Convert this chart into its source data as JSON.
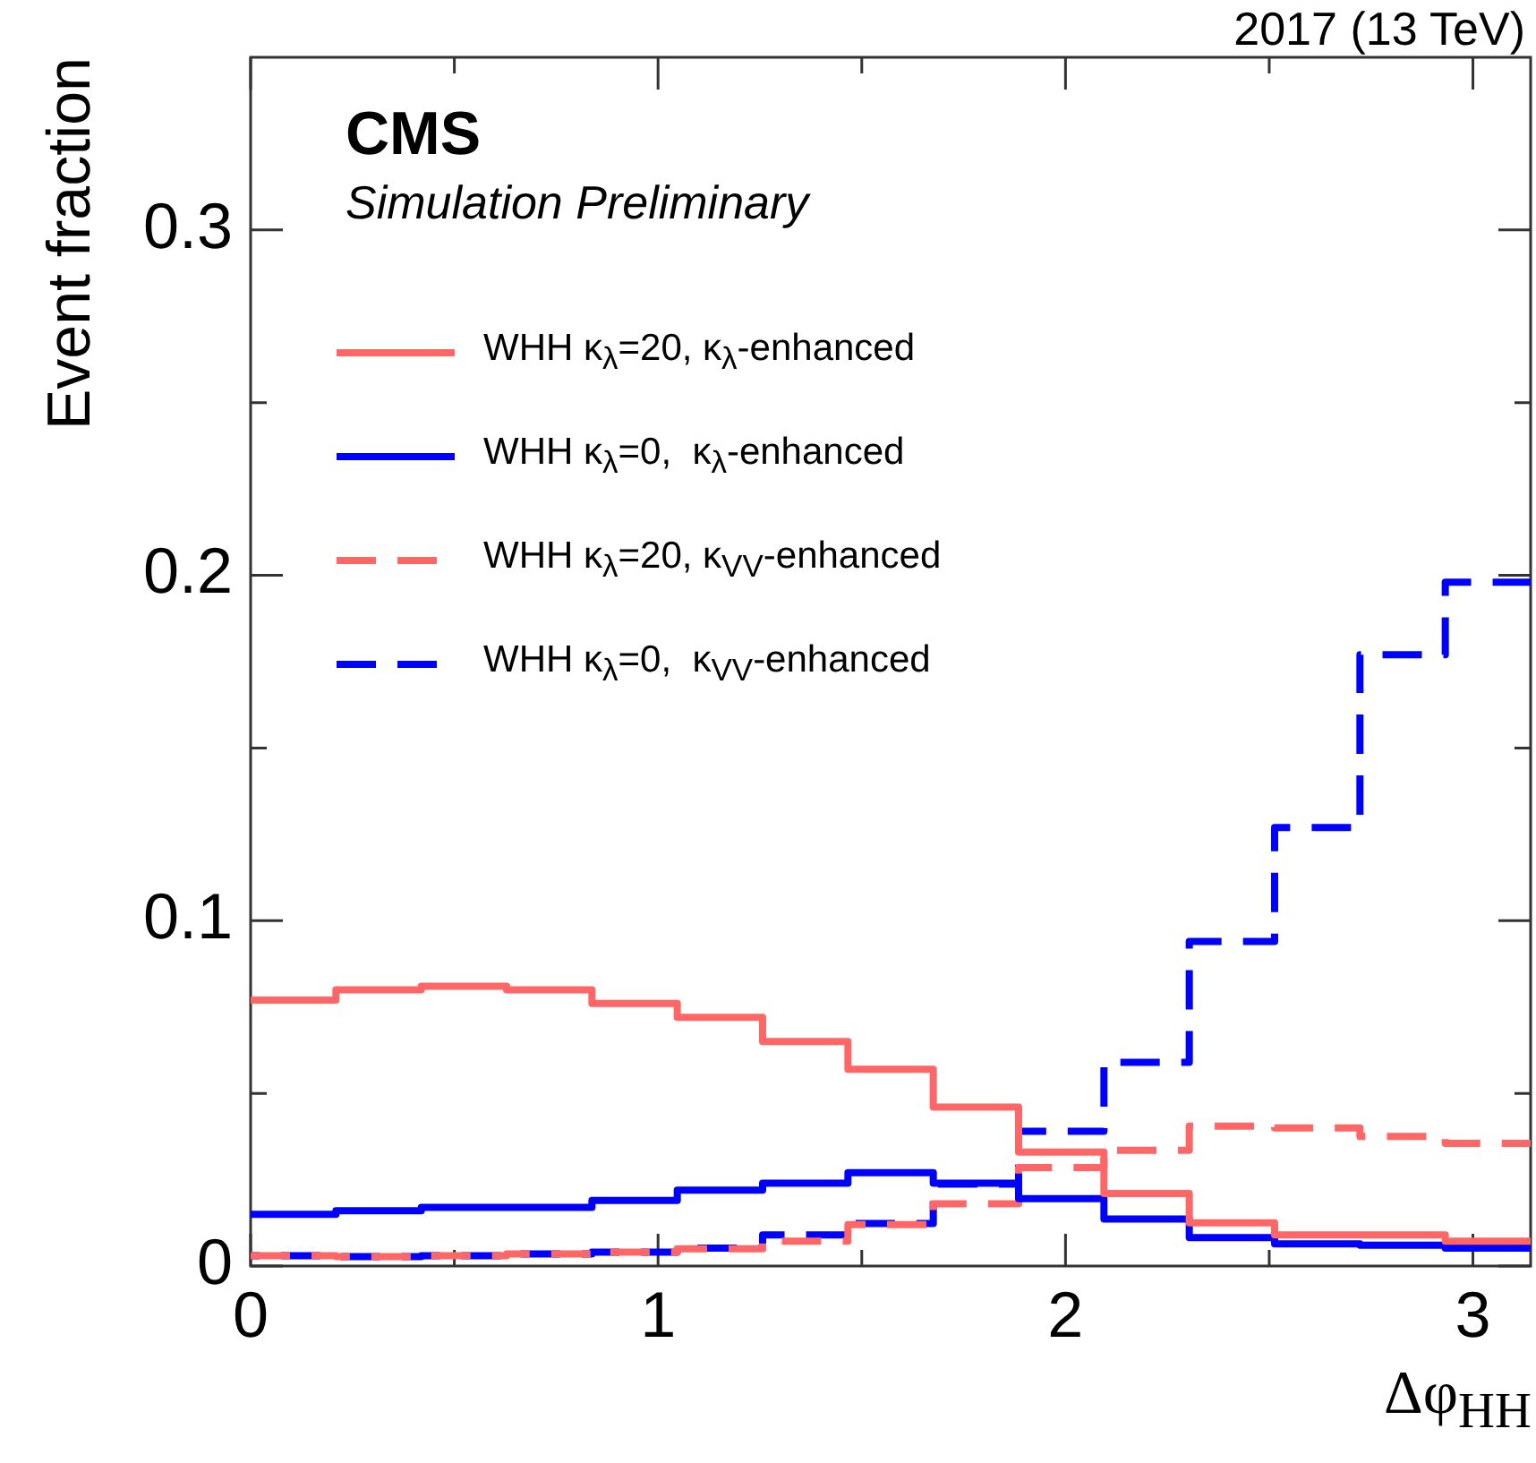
{
  "chart_data": {
    "type": "histogram",
    "xlabel": "Δφ$_{HH}$",
    "ylabel": "Event fraction",
    "annotations": [
      "CMS",
      "Simulation Preliminary",
      "2017 (13 TeV)"
    ],
    "bins": [
      0,
      0.2094,
      0.4189,
      0.6283,
      0.8378,
      1.0472,
      1.2566,
      1.4661,
      1.6755,
      1.885,
      2.0944,
      2.3038,
      2.5133,
      2.7227,
      2.9322,
      3.1416
    ],
    "xlim": [
      0,
      3.1416
    ],
    "xticks": [
      0,
      {
        "value": 0.5,
        "label": null
      },
      1,
      {
        "value": 1.5,
        "label": null
      },
      2,
      {
        "value": 2.5,
        "label": null
      },
      3
    ],
    "ylim": [
      0,
      0.35
    ],
    "yticks": [
      0,
      {
        "value": 0.05,
        "label": null
      },
      0.1,
      {
        "value": 0.15,
        "label": null
      },
      0.2,
      {
        "value": 0.25,
        "label": null
      },
      0.3
    ],
    "legend": "top left",
    "series": [
      {
        "name": "WHH κ$_{λ}$=20, κ$_{λ}$-enhanced",
        "color": "#ff6666",
        "line_style": "solid",
        "values": [
          0.077,
          0.08,
          0.081,
          0.08,
          0.076,
          0.072,
          0.065,
          0.057,
          0.046,
          0.033,
          0.021,
          0.0125,
          0.009,
          0.009,
          0.0072
        ]
      },
      {
        "name": "WHH κ$_{λ}$=0,  κ$_{λ}$-enhanced",
        "color": "#0000ff",
        "line_style": "solid",
        "values": [
          0.015,
          0.016,
          0.017,
          0.017,
          0.019,
          0.022,
          0.024,
          0.027,
          0.024,
          0.0195,
          0.0136,
          0.0082,
          0.0064,
          0.006,
          0.0052
        ]
      },
      {
        "name": "WHH κ$_{λ}$=20, κ$_{VV}$-enhanced",
        "color": "#ff6666",
        "line_style": "dashed",
        "values": [
          0.003,
          0.0027,
          0.003,
          0.0035,
          0.004,
          0.005,
          0.0072,
          0.012,
          0.018,
          0.0285,
          0.0335,
          0.0405,
          0.04,
          0.0375,
          0.0355
        ]
      },
      {
        "name": "WHH κ$_{λ}$=0,  κ$_{VV}$-enhanced",
        "color": "#0000ff",
        "line_style": "dashed",
        "values": [
          0.003,
          0.0027,
          0.003,
          0.0035,
          0.004,
          0.0052,
          0.009,
          0.0123,
          0.0237,
          0.039,
          0.059,
          0.094,
          0.127,
          0.177,
          0.198
        ]
      }
    ]
  }
}
